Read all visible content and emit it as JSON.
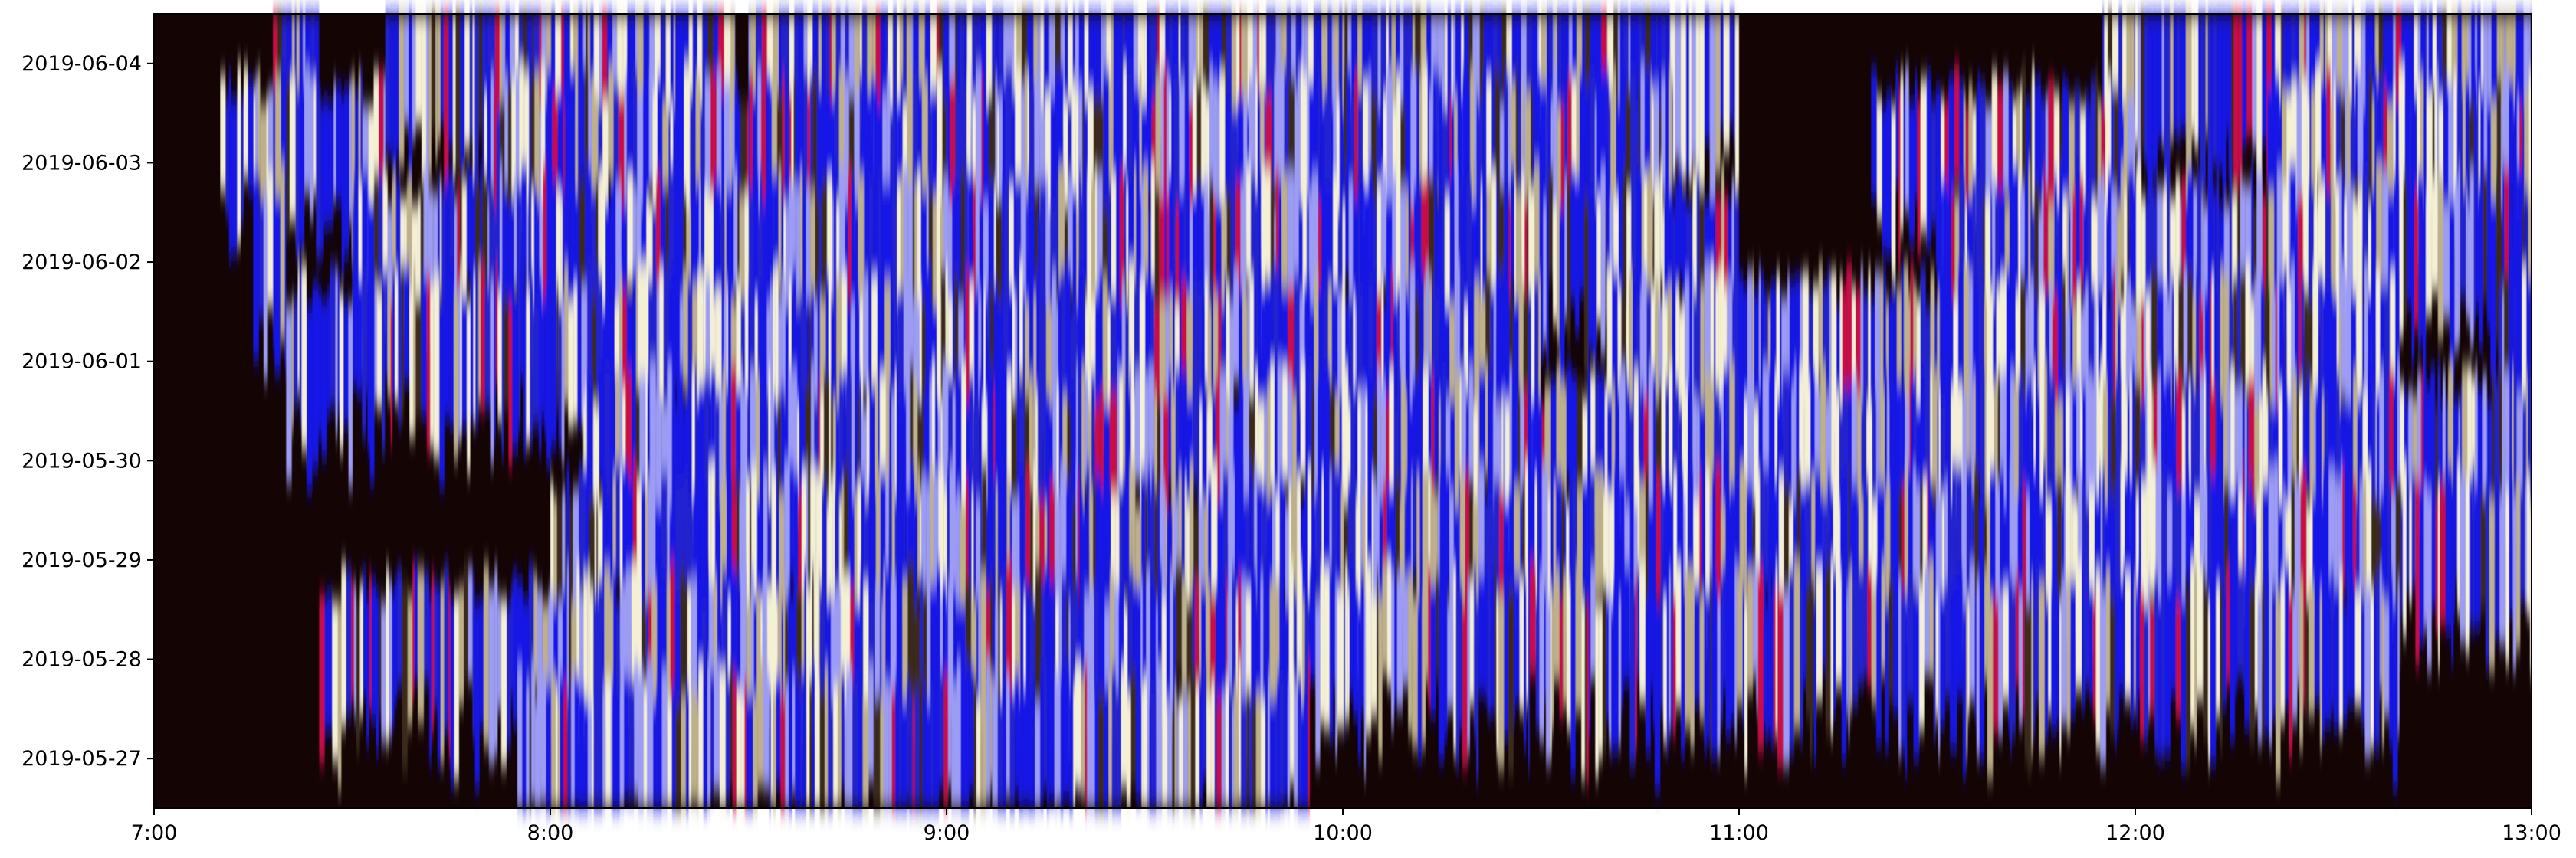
{
  "chart_data": {
    "type": "heatmap",
    "title": "",
    "xlabel": "",
    "ylabel": "",
    "x_ticks": [
      "7:00",
      "8:00",
      "9:00",
      "10:00",
      "11:00",
      "12:00",
      "13:00"
    ],
    "x_range": [
      "7:00",
      "13:00"
    ],
    "y_ticks": [
      "2019-05-27",
      "2019-05-28",
      "2019-05-29",
      "2019-05-30",
      "2019-06-01",
      "2019-06-02",
      "2019-06-03",
      "2019-06-04"
    ],
    "y_range": [
      "2019-05-26 12:00",
      "2019-06-04 12:00"
    ],
    "grid": false,
    "legend": "none",
    "colormap": [
      "#140404",
      "#3a2a1a",
      "#bdb08a",
      "#f4f0d6",
      "#9c9cf4",
      "#1414e6",
      "#2020d0",
      "#c8104a"
    ],
    "background_color": "#140404",
    "activity_spans": [
      {
        "row": "2019-06-04",
        "segments": [
          [
            "7:18",
            "7:25"
          ],
          [
            "7:35",
            "8:28"
          ],
          [
            "8:30",
            "11:00"
          ],
          [
            "11:55",
            "12:00"
          ],
          [
            "12:00",
            "13:00"
          ]
        ]
      },
      {
        "row": "2019-06-03",
        "segments": [
          [
            "7:10",
            "7:35"
          ],
          [
            "7:50",
            "8:30"
          ],
          [
            "8:30",
            "10:50"
          ],
          [
            "11:20",
            "12:00"
          ],
          [
            "12:20",
            "13:00"
          ]
        ]
      },
      {
        "row": "2019-06-02",
        "segments": [
          [
            "7:15",
            "7:20"
          ],
          [
            "7:30",
            "10:50"
          ],
          [
            "10:50",
            "11:00"
          ],
          [
            "11:30",
            "13:00"
          ]
        ]
      },
      {
        "row": "2019-06-01",
        "segments": [
          [
            "7:20",
            "10:30"
          ],
          [
            "10:40",
            "12:40"
          ],
          [
            "12:55",
            "13:00"
          ]
        ]
      },
      {
        "row": "2019-05-30",
        "segments": [
          [
            "8:05",
            "13:00"
          ]
        ]
      },
      {
        "row": "2019-05-29",
        "segments": [
          [
            "8:00",
            "12:50"
          ],
          [
            "12:50",
            "13:00"
          ]
        ]
      },
      {
        "row": "2019-05-28",
        "segments": [
          [
            "7:25",
            "10:50"
          ],
          [
            "10:50",
            "12:40"
          ]
        ]
      },
      {
        "row": "2019-05-27",
        "segments": [
          [
            "7:55",
            "9:55"
          ]
        ]
      }
    ]
  }
}
